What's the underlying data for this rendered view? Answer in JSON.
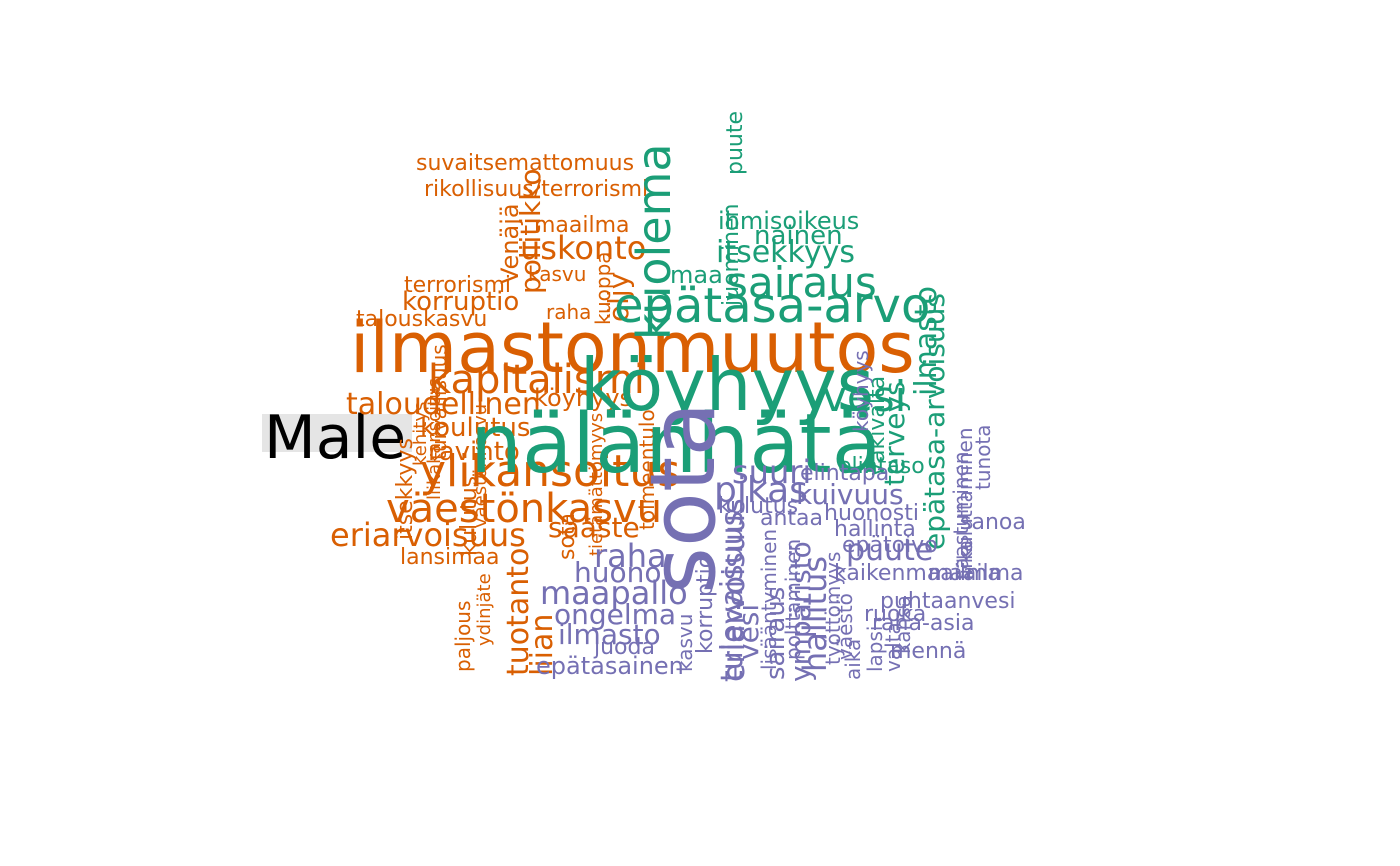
{
  "chart_data": {
    "type": "wordcloud",
    "facet_label": "Male",
    "groups": [
      {
        "color": "#D95F02",
        "words": [
          "ilmastonmuutos",
          "väestönkasvu",
          "ylikansoitus",
          "kapitalismi",
          "taloudellinen",
          "eriarvoisuus",
          "uskonto",
          "koulutus",
          "ravinto",
          "saaste",
          "korruptio",
          "terrorismi",
          "talouskasvu",
          "maailma",
          "rikollisuus/terrorismi",
          "suvaitsemattomuus",
          "kasvu",
          "raha",
          "Venäjä",
          "lansimaa",
          "köyhyys",
          "kulutus",
          "paljous",
          "ydinjäte",
          "tuotanto",
          "liian",
          "öljy",
          "poliitikko",
          "kuoppa",
          "itsekkyys",
          "liikakansoitus",
          "kehitys",
          "turvallisuus",
          "sota",
          "tietämättömyys",
          "toimeentulo",
          "väestönkasvu"
        ]
      },
      {
        "color": "#1B9E77",
        "words": [
          "nälänhätä",
          "köyhyys",
          "epätasa-arvo",
          "sairaus",
          "itsekkyys",
          "ihmisoikeus",
          "nainen",
          "juominen",
          "kuolema",
          "maa",
          "vesi",
          "terveys",
          "epätasa-arvoisuus",
          "ilmasto",
          "puute",
          "elintaso",
          "väkivalta"
        ]
      },
      {
        "color": "#7570B3",
        "words": [
          "sota",
          "puute",
          "pikas",
          "suuri",
          "kuivuus",
          "raha",
          "huono",
          "maapallo",
          "ongelma",
          "ilmasto",
          "juoda",
          "epätasainen",
          "tulevaisuus",
          "eriarvoisuus",
          "korruptio",
          "vesi",
          "sanoa",
          "maailma",
          "kaikenmaailma",
          "puhtaanvesi",
          "raha-asia",
          "mennä",
          "hallinta",
          "antaa",
          "elintapa",
          "huonosti",
          "kulutus",
          "tunota",
          "saastuminen",
          "kuluttaminen",
          "ympäristö",
          "ruoka",
          "epätoivo",
          "sairaus",
          "hallitus",
          "aika",
          "lapsi",
          "valta",
          "kasvu",
          "lisääntyminen",
          "työttömyys",
          "köyhyys",
          "kansa",
          "polttaminen",
          "väestö",
          "liika"
        ]
      }
    ]
  }
}
